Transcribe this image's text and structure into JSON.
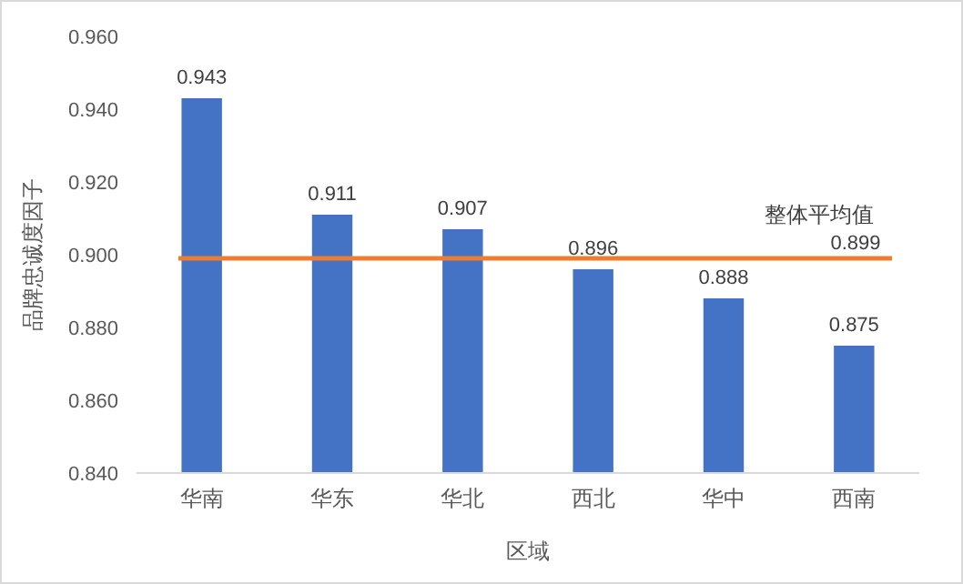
{
  "chart_data": {
    "type": "bar",
    "xlabel": "区域",
    "ylabel": "品牌忠诚度因子",
    "categories": [
      "华南",
      "华东",
      "华北",
      "西北",
      "华中",
      "西南"
    ],
    "values": [
      0.943,
      0.911,
      0.907,
      0.896,
      0.888,
      0.875
    ],
    "color": "#4472c4",
    "data_labels": true,
    "ylim": [
      0.84,
      0.96
    ],
    "yticks": [
      {
        "value": 0.84,
        "label": "0.840"
      },
      {
        "value": 0.86,
        "label": "0.860"
      },
      {
        "value": 0.88,
        "label": "0.880"
      },
      {
        "value": 0.9,
        "label": "0.900"
      },
      {
        "value": 0.92,
        "label": "0.920"
      },
      {
        "value": 0.94,
        "label": "0.940"
      },
      {
        "value": 0.96,
        "label": "0.960"
      }
    ],
    "ref_lines": [
      {
        "axis": "y",
        "value": 0.899,
        "label": "整体平均值",
        "color": "#ed7d31"
      }
    ],
    "annotations": [
      {
        "text": "0.899",
        "y": 0.899
      }
    ],
    "grid": false
  }
}
